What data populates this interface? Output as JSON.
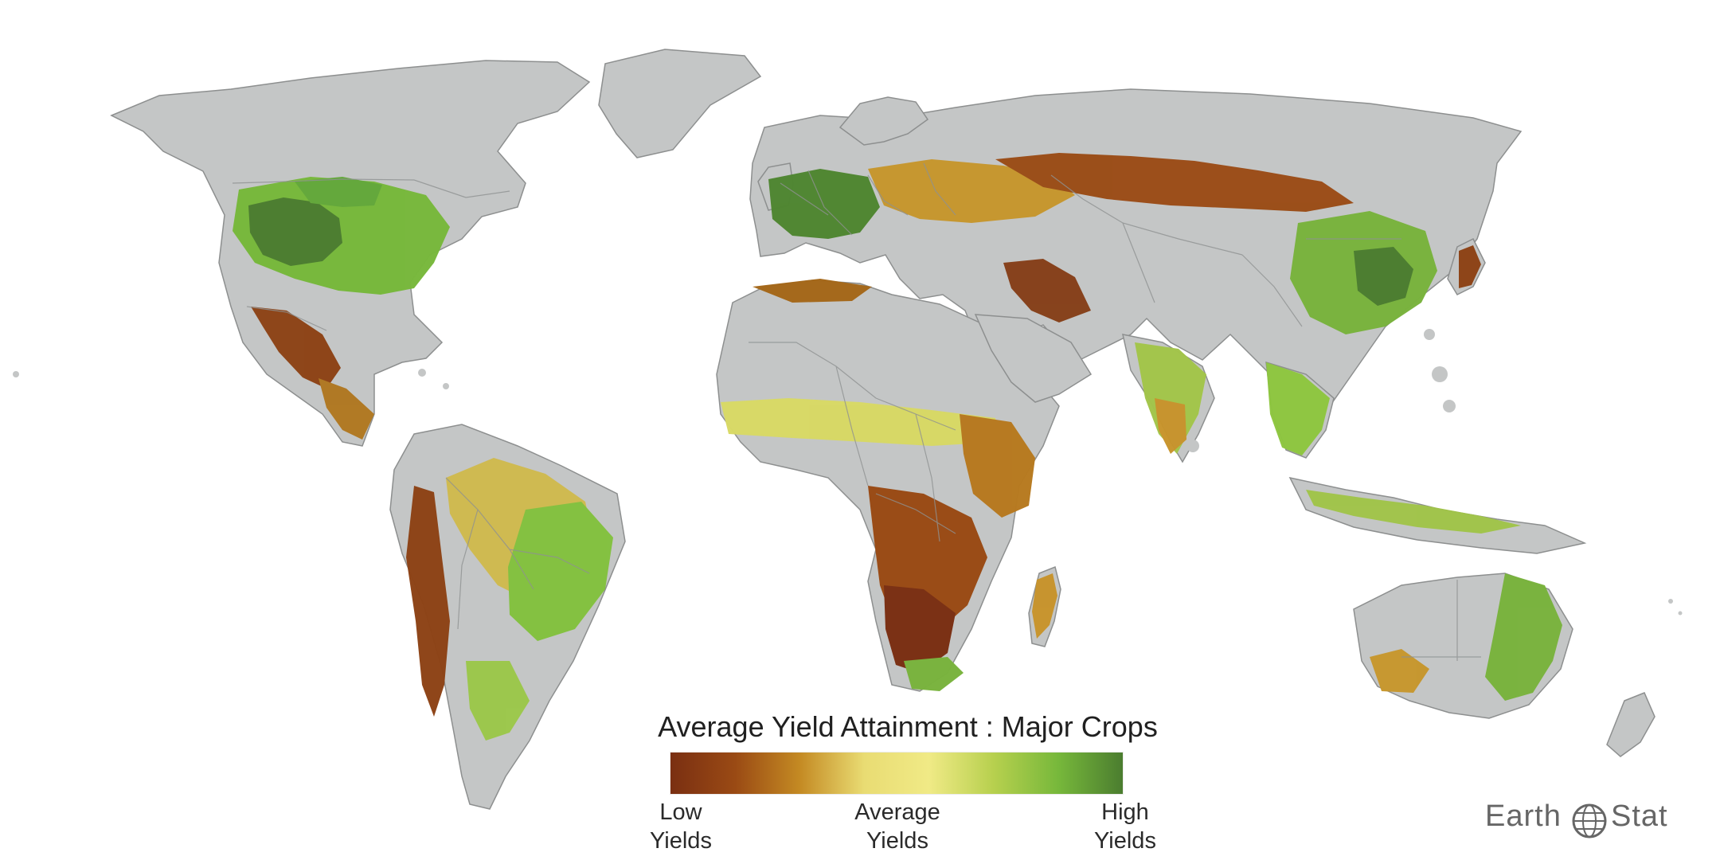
{
  "map": {
    "title": "Average Yield Attainment : Major Crops",
    "legend": {
      "low_label": "Low\nYields",
      "average_label": "Average\nYields",
      "high_label": "High\nYields",
      "gradient": [
        "#7a2f12",
        "#9a4a14",
        "#c48a23",
        "#e9dc73",
        "#f0ea86",
        "#b7d04e",
        "#77b83b",
        "#4b7d2f"
      ]
    },
    "brand": {
      "left": "Earth",
      "right": "Stat"
    }
  },
  "colors": {
    "land_no_data": "#c4c6c6",
    "ocean": "#ffffff",
    "border": "#8d8f8f",
    "low": "#7a2f12",
    "average": "#efe57f",
    "high": "#4b7d2f"
  }
}
